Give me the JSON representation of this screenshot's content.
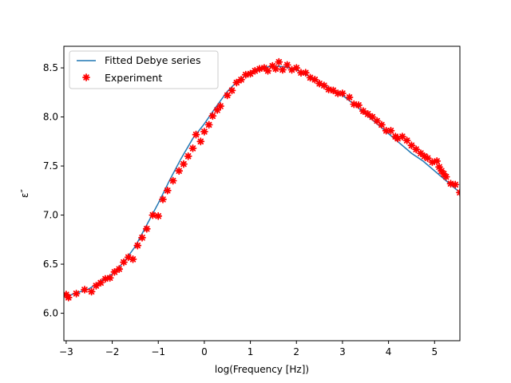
{
  "chart_data": {
    "type": "line",
    "xlabel": "log(Frequency [Hz])",
    "ylabel": "ε″",
    "xlim": [
      -3.05,
      5.55
    ],
    "ylim": [
      5.72,
      8.72
    ],
    "xticks": [
      -3,
      -2,
      -1,
      0,
      1,
      2,
      3,
      4,
      5
    ],
    "yticks": [
      6.0,
      6.5,
      7.0,
      7.5,
      8.0,
      8.5
    ],
    "legend": {
      "placement": "top-left"
    },
    "grid": false,
    "series": [
      {
        "name": "Fitted Debye series",
        "kind": "line",
        "color": "#1f77b4",
        "x": [
          -3.0,
          -2.5,
          -2.0,
          -1.75,
          -1.5,
          -1.25,
          -1.0,
          -0.75,
          -0.5,
          -0.25,
          0.0,
          0.25,
          0.5,
          0.75,
          1.0,
          1.25,
          1.5,
          1.75,
          2.0,
          2.25,
          2.5,
          2.75,
          3.0,
          3.25,
          3.5,
          3.75,
          4.0,
          4.25,
          4.5,
          4.75,
          5.0,
          5.25,
          5.55
        ],
        "y": [
          6.17,
          6.25,
          6.4,
          6.52,
          6.68,
          6.9,
          7.12,
          7.36,
          7.58,
          7.78,
          7.93,
          8.1,
          8.26,
          8.38,
          8.45,
          8.5,
          8.52,
          8.51,
          8.48,
          8.42,
          8.35,
          8.28,
          8.22,
          8.13,
          8.03,
          7.93,
          7.83,
          7.73,
          7.63,
          7.55,
          7.45,
          7.35,
          7.23
        ]
      },
      {
        "name": "Experiment",
        "kind": "scatter",
        "color": "#ff0000",
        "x": [
          -3.0,
          -2.95,
          -2.78,
          -2.6,
          -2.45,
          -2.35,
          -2.25,
          -2.15,
          -2.05,
          -1.95,
          -1.85,
          -1.75,
          -1.65,
          -1.55,
          -1.45,
          -1.35,
          -1.25,
          -1.12,
          -1.0,
          -0.9,
          -0.8,
          -0.68,
          -0.55,
          -0.45,
          -0.35,
          -0.25,
          -0.18,
          -0.08,
          0.0,
          0.1,
          0.18,
          0.28,
          0.35,
          0.5,
          0.6,
          0.7,
          0.8,
          0.9,
          1.0,
          1.1,
          1.2,
          1.3,
          1.38,
          1.48,
          1.55,
          1.62,
          1.7,
          1.8,
          1.9,
          2.0,
          2.1,
          2.2,
          2.3,
          2.4,
          2.5,
          2.6,
          2.7,
          2.8,
          2.9,
          3.0,
          3.15,
          3.25,
          3.35,
          3.45,
          3.55,
          3.65,
          3.75,
          3.85,
          3.95,
          4.05,
          4.15,
          4.2,
          4.3,
          4.4,
          4.5,
          4.6,
          4.7,
          4.78,
          4.85,
          4.95,
          5.05,
          5.1,
          5.15,
          5.2,
          5.25,
          5.35,
          5.45,
          5.55
        ],
        "y": [
          6.19,
          6.16,
          6.2,
          6.24,
          6.22,
          6.28,
          6.31,
          6.35,
          6.36,
          6.42,
          6.45,
          6.52,
          6.57,
          6.55,
          6.69,
          6.77,
          6.86,
          7.0,
          6.99,
          7.16,
          7.25,
          7.35,
          7.45,
          7.52,
          7.6,
          7.68,
          7.82,
          7.75,
          7.85,
          7.92,
          8.01,
          8.07,
          8.11,
          8.22,
          8.27,
          8.35,
          8.38,
          8.43,
          8.44,
          8.47,
          8.49,
          8.5,
          8.47,
          8.52,
          8.49,
          8.56,
          8.48,
          8.53,
          8.48,
          8.5,
          8.45,
          8.45,
          8.4,
          8.38,
          8.34,
          8.32,
          8.28,
          8.27,
          8.24,
          8.24,
          8.2,
          8.13,
          8.12,
          8.06,
          8.03,
          8.0,
          7.96,
          7.92,
          7.86,
          7.86,
          7.8,
          7.78,
          7.8,
          7.76,
          7.71,
          7.67,
          7.63,
          7.6,
          7.58,
          7.54,
          7.55,
          7.49,
          7.45,
          7.42,
          7.39,
          7.32,
          7.31,
          7.23
        ]
      }
    ]
  }
}
